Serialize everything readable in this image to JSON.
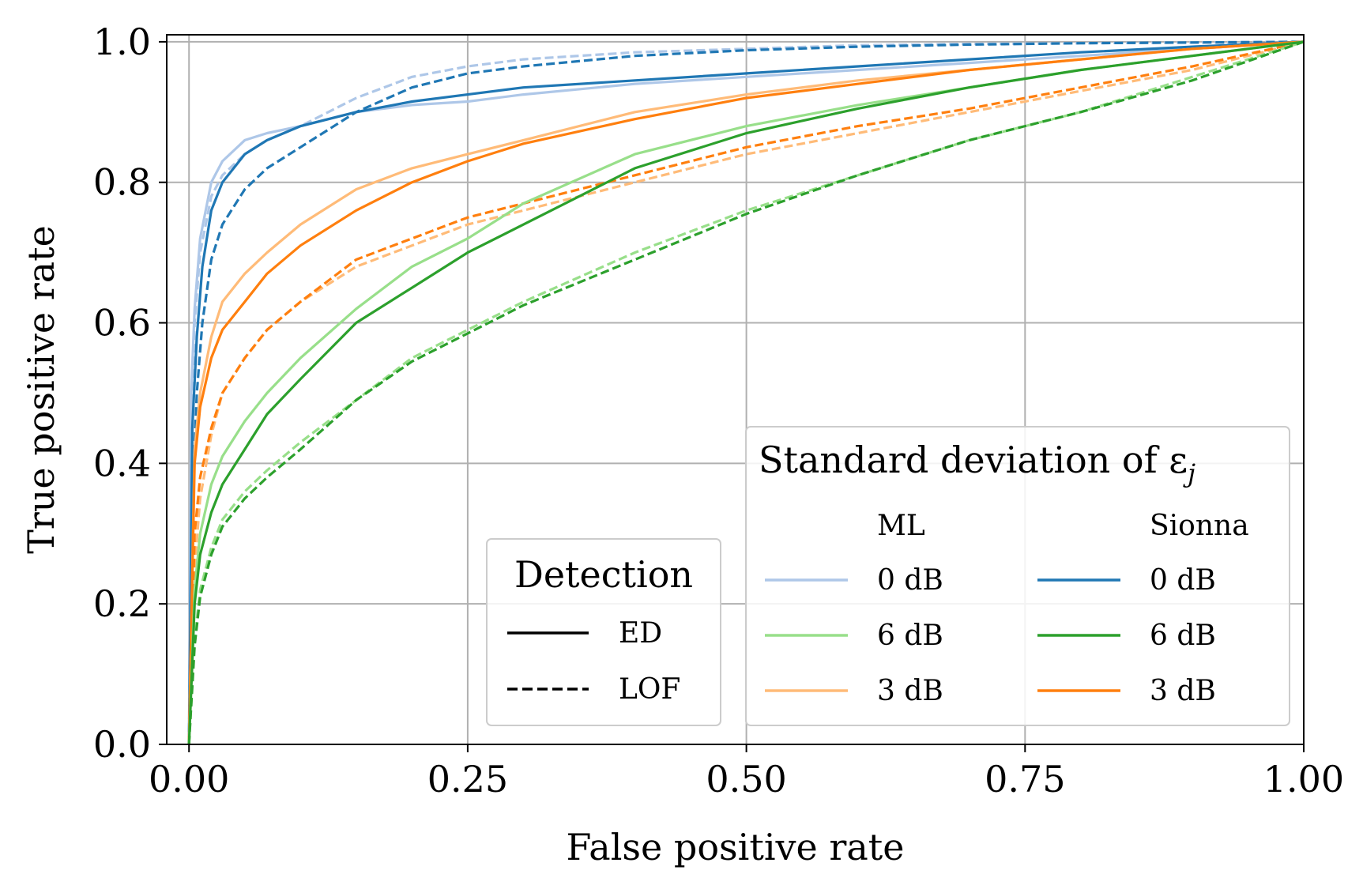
{
  "chart_data": {
    "type": "line",
    "title": "",
    "xlabel": "False positive rate",
    "ylabel": "True positive rate",
    "xlim": [
      -0.02,
      1.0
    ],
    "ylim": [
      0.0,
      1.01
    ],
    "xticks": [
      0.0,
      0.25,
      0.5,
      0.75,
      1.0
    ],
    "xtick_labels": [
      "0.00",
      "0.25",
      "0.50",
      "0.75",
      "1.00"
    ],
    "yticks": [
      0.0,
      0.2,
      0.4,
      0.6,
      0.8,
      1.0
    ],
    "ytick_labels": [
      "0.0",
      "0.2",
      "0.4",
      "0.6",
      "0.8",
      "1.0"
    ],
    "grid": true,
    "colors": {
      "ml_0": "#aec7e8",
      "ml_6": "#98df8a",
      "ml_3": "#ffbb78",
      "sionna_0": "#1f77b4",
      "sionna_6": "#2ca02c",
      "sionna_3": "#ff7f0e",
      "axes": "#000000",
      "grid": "#b0b0b0"
    },
    "legend_detection": {
      "title": "Detection",
      "placement": "lower-center",
      "entries": [
        {
          "label": "ED",
          "style": "solid"
        },
        {
          "label": "LOF",
          "style": "dashed"
        }
      ]
    },
    "legend_std": {
      "title": "Standard deviation of ε",
      "title_subscript": "j",
      "placement": "lower-right",
      "columns": [
        {
          "header": "ML",
          "entries": [
            {
              "label": "0 dB",
              "color_key": "ml_0"
            },
            {
              "label": "6 dB",
              "color_key": "ml_6"
            },
            {
              "label": "3 dB",
              "color_key": "ml_3"
            }
          ]
        },
        {
          "header": "Sionna",
          "entries": [
            {
              "label": "0 dB",
              "color_key": "sionna_0"
            },
            {
              "label": "6 dB",
              "color_key": "sionna_6"
            },
            {
              "label": "3 dB",
              "color_key": "sionna_3"
            }
          ]
        }
      ]
    },
    "series": [
      {
        "source": "ML",
        "std": "0 dB",
        "method": "ED",
        "color_key": "ml_0",
        "style": "solid",
        "x": [
          0,
          0.002,
          0.005,
          0.01,
          0.02,
          0.03,
          0.05,
          0.07,
          0.1,
          0.15,
          0.2,
          0.25,
          0.3,
          0.4,
          0.5,
          0.6,
          0.7,
          0.8,
          0.9,
          1.0
        ],
        "y": [
          0,
          0.5,
          0.62,
          0.72,
          0.8,
          0.83,
          0.86,
          0.87,
          0.88,
          0.9,
          0.91,
          0.915,
          0.925,
          0.94,
          0.95,
          0.96,
          0.97,
          0.98,
          0.99,
          1.0
        ]
      },
      {
        "source": "ML",
        "std": "0 dB",
        "method": "LOF",
        "color_key": "ml_0",
        "style": "dashed",
        "x": [
          0,
          0.002,
          0.005,
          0.01,
          0.02,
          0.03,
          0.05,
          0.07,
          0.1,
          0.15,
          0.2,
          0.25,
          0.3,
          0.4,
          0.5,
          0.6,
          0.7,
          0.8,
          0.9,
          1.0
        ],
        "y": [
          0,
          0.45,
          0.6,
          0.7,
          0.78,
          0.81,
          0.84,
          0.86,
          0.88,
          0.92,
          0.95,
          0.965,
          0.975,
          0.985,
          0.99,
          0.995,
          0.997,
          0.998,
          0.999,
          1.0
        ]
      },
      {
        "source": "Sionna",
        "std": "0 dB",
        "method": "ED",
        "color_key": "sionna_0",
        "style": "solid",
        "x": [
          0,
          0.003,
          0.007,
          0.012,
          0.02,
          0.03,
          0.05,
          0.07,
          0.1,
          0.15,
          0.2,
          0.25,
          0.3,
          0.4,
          0.5,
          0.6,
          0.7,
          0.8,
          0.9,
          1.0
        ],
        "y": [
          0,
          0.45,
          0.58,
          0.68,
          0.76,
          0.8,
          0.84,
          0.86,
          0.88,
          0.9,
          0.915,
          0.925,
          0.935,
          0.945,
          0.955,
          0.965,
          0.975,
          0.985,
          0.993,
          1.0
        ]
      },
      {
        "source": "Sionna",
        "std": "0 dB",
        "method": "LOF",
        "color_key": "sionna_0",
        "style": "dashed",
        "x": [
          0,
          0.003,
          0.007,
          0.012,
          0.02,
          0.03,
          0.05,
          0.07,
          0.1,
          0.15,
          0.2,
          0.25,
          0.3,
          0.4,
          0.5,
          0.6,
          0.7,
          0.8,
          0.9,
          1.0
        ],
        "y": [
          0,
          0.35,
          0.5,
          0.6,
          0.69,
          0.74,
          0.79,
          0.82,
          0.85,
          0.9,
          0.935,
          0.955,
          0.965,
          0.98,
          0.988,
          0.993,
          0.996,
          0.998,
          0.999,
          1.0
        ]
      },
      {
        "source": "ML",
        "std": "3 dB",
        "method": "ED",
        "color_key": "ml_3",
        "style": "solid",
        "x": [
          0,
          0.005,
          0.01,
          0.02,
          0.03,
          0.05,
          0.07,
          0.1,
          0.15,
          0.2,
          0.25,
          0.3,
          0.4,
          0.5,
          0.6,
          0.7,
          0.8,
          0.9,
          1.0
        ],
        "y": [
          0,
          0.42,
          0.5,
          0.58,
          0.63,
          0.67,
          0.7,
          0.74,
          0.79,
          0.82,
          0.84,
          0.86,
          0.9,
          0.925,
          0.945,
          0.96,
          0.975,
          0.99,
          1.0
        ]
      },
      {
        "source": "ML",
        "std": "3 dB",
        "method": "LOF",
        "color_key": "ml_3",
        "style": "dashed",
        "x": [
          0,
          0.005,
          0.01,
          0.02,
          0.03,
          0.05,
          0.07,
          0.1,
          0.15,
          0.2,
          0.25,
          0.3,
          0.4,
          0.5,
          0.6,
          0.7,
          0.8,
          0.9,
          1.0
        ],
        "y": [
          0,
          0.25,
          0.35,
          0.44,
          0.5,
          0.55,
          0.59,
          0.63,
          0.68,
          0.71,
          0.74,
          0.76,
          0.8,
          0.84,
          0.87,
          0.9,
          0.93,
          0.96,
          1.0
        ]
      },
      {
        "source": "Sionna",
        "std": "3 dB",
        "method": "ED",
        "color_key": "sionna_3",
        "style": "solid",
        "x": [
          0,
          0.005,
          0.01,
          0.02,
          0.03,
          0.05,
          0.07,
          0.1,
          0.15,
          0.2,
          0.25,
          0.3,
          0.4,
          0.5,
          0.6,
          0.7,
          0.8,
          0.9,
          1.0
        ],
        "y": [
          0,
          0.4,
          0.48,
          0.55,
          0.59,
          0.63,
          0.67,
          0.71,
          0.76,
          0.8,
          0.83,
          0.855,
          0.89,
          0.92,
          0.94,
          0.96,
          0.975,
          0.99,
          1.0
        ]
      },
      {
        "source": "Sionna",
        "std": "3 dB",
        "method": "LOF",
        "color_key": "sionna_3",
        "style": "dashed",
        "x": [
          0,
          0.005,
          0.01,
          0.02,
          0.03,
          0.05,
          0.07,
          0.1,
          0.15,
          0.2,
          0.25,
          0.3,
          0.4,
          0.5,
          0.6,
          0.7,
          0.8,
          0.9,
          1.0
        ],
        "y": [
          0,
          0.3,
          0.38,
          0.45,
          0.5,
          0.55,
          0.59,
          0.63,
          0.69,
          0.72,
          0.75,
          0.77,
          0.81,
          0.85,
          0.88,
          0.905,
          0.935,
          0.965,
          1.0
        ]
      },
      {
        "source": "ML",
        "std": "6 dB",
        "method": "ED",
        "color_key": "ml_6",
        "style": "solid",
        "x": [
          0,
          0.005,
          0.01,
          0.02,
          0.03,
          0.05,
          0.07,
          0.1,
          0.15,
          0.2,
          0.25,
          0.3,
          0.4,
          0.5,
          0.6,
          0.7,
          0.8,
          0.9,
          1.0
        ],
        "y": [
          0,
          0.22,
          0.3,
          0.37,
          0.41,
          0.46,
          0.5,
          0.55,
          0.62,
          0.68,
          0.72,
          0.77,
          0.84,
          0.88,
          0.91,
          0.935,
          0.96,
          0.98,
          1.0
        ]
      },
      {
        "source": "ML",
        "std": "6 dB",
        "method": "LOF",
        "color_key": "ml_6",
        "style": "dashed",
        "x": [
          0,
          0.005,
          0.01,
          0.02,
          0.03,
          0.05,
          0.07,
          0.1,
          0.15,
          0.2,
          0.25,
          0.3,
          0.4,
          0.5,
          0.6,
          0.7,
          0.8,
          0.9,
          1.0
        ],
        "y": [
          0,
          0.15,
          0.22,
          0.28,
          0.32,
          0.36,
          0.39,
          0.43,
          0.49,
          0.55,
          0.59,
          0.63,
          0.7,
          0.76,
          0.81,
          0.86,
          0.9,
          0.95,
          1.0
        ]
      },
      {
        "source": "Sionna",
        "std": "6 dB",
        "method": "ED",
        "color_key": "sionna_6",
        "style": "solid",
        "x": [
          0,
          0.005,
          0.01,
          0.02,
          0.03,
          0.05,
          0.07,
          0.1,
          0.15,
          0.2,
          0.25,
          0.3,
          0.4,
          0.5,
          0.6,
          0.7,
          0.8,
          0.9,
          1.0
        ],
        "y": [
          0,
          0.2,
          0.27,
          0.33,
          0.37,
          0.42,
          0.47,
          0.52,
          0.6,
          0.65,
          0.7,
          0.74,
          0.82,
          0.87,
          0.905,
          0.935,
          0.96,
          0.98,
          1.0
        ]
      },
      {
        "source": "Sionna",
        "std": "6 dB",
        "method": "LOF",
        "color_key": "sionna_6",
        "style": "dashed",
        "x": [
          0,
          0.005,
          0.01,
          0.02,
          0.03,
          0.05,
          0.07,
          0.1,
          0.15,
          0.2,
          0.25,
          0.3,
          0.4,
          0.5,
          0.6,
          0.7,
          0.8,
          0.9,
          1.0
        ],
        "y": [
          0,
          0.14,
          0.21,
          0.27,
          0.31,
          0.35,
          0.38,
          0.42,
          0.49,
          0.545,
          0.585,
          0.625,
          0.69,
          0.755,
          0.81,
          0.86,
          0.9,
          0.945,
          1.0
        ]
      }
    ]
  }
}
